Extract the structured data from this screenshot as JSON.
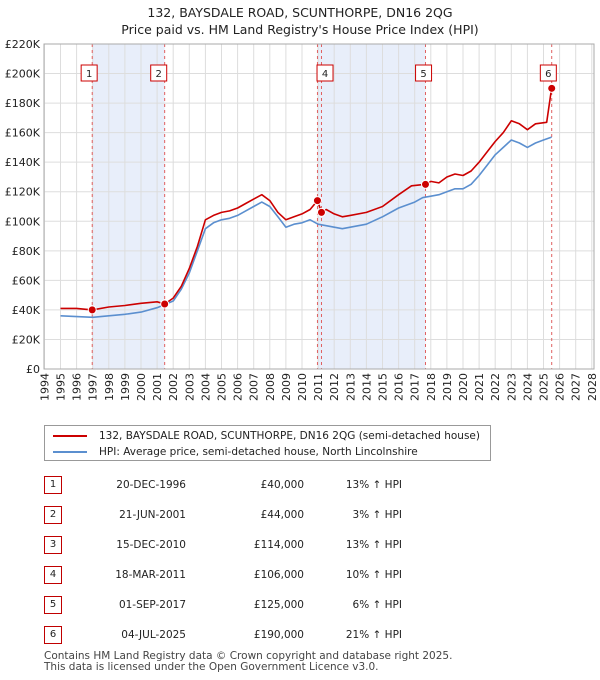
{
  "title": {
    "line1": "132, BAYSDALE ROAD, SCUNTHORPE, DN16 2QG",
    "line2": "Price paid vs. HM Land Registry's House Price Index (HPI)"
  },
  "colors": {
    "property_line": "#cc0000",
    "hpi_line": "#5b8fcf",
    "shade": "#e8eefa",
    "marker_border": "#cc0000",
    "grid": "#dddddd",
    "vline": "#e06060"
  },
  "chart_data": {
    "type": "line",
    "title": "132, BAYSDALE ROAD, SCUNTHORPE, DN16 2QG — Price paid vs. HM Land Registry's House Price Index (HPI)",
    "xlim": [
      1994,
      2028
    ],
    "ylim": [
      0,
      220000
    ],
    "y_ticks": [
      0,
      20000,
      40000,
      60000,
      80000,
      100000,
      120000,
      140000,
      160000,
      180000,
      200000,
      220000
    ],
    "y_tick_labels": [
      "£0",
      "£20K",
      "£40K",
      "£60K",
      "£80K",
      "£100K",
      "£120K",
      "£140K",
      "£160K",
      "£180K",
      "£200K",
      "£220K"
    ],
    "x_ticks": [
      1994,
      1995,
      1996,
      1997,
      1998,
      1999,
      2000,
      2001,
      2002,
      2003,
      2004,
      2005,
      2006,
      2007,
      2008,
      2009,
      2010,
      2011,
      2012,
      2013,
      2014,
      2015,
      2016,
      2017,
      2018,
      2019,
      2020,
      2021,
      2022,
      2023,
      2024,
      2025,
      2026,
      2027,
      2028
    ],
    "x_tick_labels": [
      "1994",
      "1995",
      "1996",
      "1997",
      "1998",
      "1999",
      "2000",
      "2001",
      "2002",
      "2003",
      "2004",
      "2005",
      "2006",
      "2007",
      "2008",
      "2009",
      "2010",
      "2011",
      "2012",
      "2013",
      "2014",
      "2015",
      "2016",
      "2017",
      "2018",
      "2019",
      "2020",
      "2021",
      "2022",
      "2023",
      "2024",
      "2025",
      "2026",
      "2027",
      "2028"
    ],
    "grid": true,
    "shaded_ranges": [
      [
        1996.97,
        2001.47
      ],
      [
        2010.96,
        2017.67
      ]
    ],
    "series": [
      {
        "name": "132, BAYSDALE ROAD, SCUNTHORPE, DN16 2QG (semi-detached house)",
        "color": "#cc0000",
        "x": [
          1995,
          1996,
          1996.97,
          1998,
          1999,
          2000,
          2001,
          2001.47,
          2002,
          2002.5,
          2003,
          2003.5,
          2004,
          2004.5,
          2005,
          2005.5,
          2006,
          2006.5,
          2007,
          2007.5,
          2008,
          2008.5,
          2009,
          2009.5,
          2010,
          2010.5,
          2010.96,
          2011.21,
          2011.5,
          2012,
          2012.5,
          2013,
          2014,
          2015,
          2016,
          2016.8,
          2017.67,
          2018,
          2018.5,
          2019,
          2019.5,
          2020,
          2020.5,
          2021,
          2021.5,
          2022,
          2022.5,
          2023,
          2023.5,
          2024,
          2024.5,
          2025.2,
          2025.5
        ],
        "y": [
          41000,
          41000,
          40000,
          42000,
          43000,
          44500,
          45500,
          44000,
          48000,
          56000,
          68000,
          83000,
          101000,
          104000,
          106000,
          107000,
          109000,
          112000,
          115000,
          118000,
          114000,
          106000,
          101000,
          103000,
          105000,
          108000,
          114000,
          106000,
          108000,
          105000,
          103000,
          104000,
          106000,
          110000,
          118000,
          124000,
          125000,
          127000,
          126000,
          130000,
          132000,
          131000,
          134000,
          140000,
          147000,
          154000,
          160000,
          168000,
          166000,
          162000,
          166000,
          167000,
          190000
        ]
      },
      {
        "name": "HPI: Average price, semi-detached house, North Lincolnshire",
        "color": "#5b8fcf",
        "x": [
          1995,
          1996,
          1997,
          1998,
          1999,
          2000,
          2001,
          2002,
          2002.5,
          2003,
          2003.5,
          2004,
          2004.5,
          2005,
          2005.5,
          2006,
          2006.5,
          2007,
          2007.5,
          2008,
          2008.5,
          2009,
          2009.5,
          2010,
          2010.5,
          2011,
          2011.5,
          2012,
          2012.5,
          2013,
          2014,
          2015,
          2016,
          2017,
          2017.5,
          2018,
          2018.5,
          2019,
          2019.5,
          2020,
          2020.5,
          2021,
          2021.5,
          2022,
          2022.5,
          2023,
          2023.5,
          2024,
          2024.5,
          2025,
          2025.5
        ],
        "y": [
          36000,
          35500,
          35000,
          36000,
          37000,
          38500,
          41500,
          46000,
          54000,
          65000,
          80000,
          95000,
          99000,
          101000,
          102000,
          104000,
          107000,
          110000,
          113000,
          110000,
          103000,
          96000,
          98000,
          99000,
          101000,
          98000,
          97000,
          96000,
          95000,
          96000,
          98000,
          103000,
          109000,
          113000,
          116000,
          117000,
          118000,
          120000,
          122000,
          122000,
          125000,
          131000,
          138000,
          145000,
          150000,
          155000,
          153000,
          150000,
          153000,
          155000,
          157000
        ]
      }
    ],
    "sales": [
      {
        "label": "1",
        "x": 1996.97,
        "y": 40000
      },
      {
        "label": "2",
        "x": 2001.47,
        "y": 44000
      },
      {
        "label": "3",
        "x": 2010.96,
        "y": 114000
      },
      {
        "label": "4",
        "x": 2011.21,
        "y": 106000
      },
      {
        "label": "5",
        "x": 2017.67,
        "y": 125000
      },
      {
        "label": "6",
        "x": 2025.51,
        "y": 190000
      }
    ],
    "chart_badges": [
      {
        "label": "1",
        "x": 1996.78
      },
      {
        "label": "2",
        "x": 2001.1
      },
      {
        "label": "4",
        "x": 2011.43
      },
      {
        "label": "5",
        "x": 2017.55
      },
      {
        "label": "6",
        "x": 2025.3
      }
    ]
  },
  "legend": {
    "property_label": "132, BAYSDALE ROAD, SCUNTHORPE, DN16 2QG (semi-detached house)",
    "hpi_label": "HPI: Average price, semi-detached house, North Lincolnshire"
  },
  "sales_table": [
    {
      "num": "1",
      "date": "20-DEC-1996",
      "price": "£40,000",
      "diff": "13% ↑ HPI"
    },
    {
      "num": "2",
      "date": "21-JUN-2001",
      "price": "£44,000",
      "diff": "3% ↑ HPI"
    },
    {
      "num": "3",
      "date": "15-DEC-2010",
      "price": "£114,000",
      "diff": "13% ↑ HPI"
    },
    {
      "num": "4",
      "date": "18-MAR-2011",
      "price": "£106,000",
      "diff": "10% ↑ HPI"
    },
    {
      "num": "5",
      "date": "01-SEP-2017",
      "price": "£125,000",
      "diff": "6% ↑ HPI"
    },
    {
      "num": "6",
      "date": "04-JUL-2025",
      "price": "£190,000",
      "diff": "21% ↑ HPI"
    }
  ],
  "footer": {
    "line1": "Contains HM Land Registry data © Crown copyright and database right 2025.",
    "line2": "This data is licensed under the Open Government Licence v3.0."
  }
}
